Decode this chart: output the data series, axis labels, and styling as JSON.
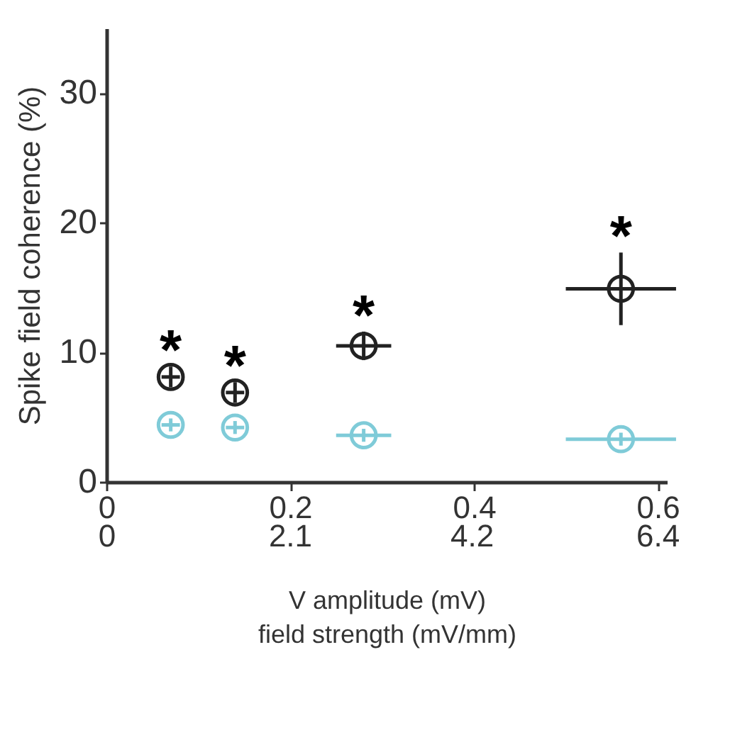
{
  "chart_data": {
    "type": "scatter",
    "xlabel": "V amplitude (mV)",
    "x2label": "field strength (mV/mm)",
    "ylabel": "Spike field coherence (%)",
    "x": [
      0.07,
      0.14,
      0.28,
      0.56
    ],
    "series": [
      {
        "color": "#222222",
        "values": [
          8.1,
          6.9,
          10.5,
          14.9
        ],
        "errors": [
          0.8,
          0.8,
          1.1,
          2.8
        ],
        "xerrors": [
          0.01,
          0.01,
          0.03,
          0.06
        ]
      },
      {
        "color": "#7fcbd8",
        "values": [
          4.4,
          4.2,
          3.6,
          3.3
        ],
        "errors": [
          0.5,
          0.5,
          0.5,
          0.5
        ],
        "xerrors": [
          0.01,
          0.01,
          0.03,
          0.06
        ]
      }
    ],
    "xlim": [
      0,
      0.61
    ],
    "xticks": [
      0,
      0.2,
      0.4,
      0.6
    ],
    "x2lim": [
      0,
      6.51
    ],
    "x2ticks": [
      0,
      {
        "value": 2.13,
        "label": "2.1"
      },
      {
        "value": 4.24,
        "label": "4.2"
      },
      6.4
    ],
    "ylim": [
      0,
      35
    ],
    "yticks": [
      0,
      10,
      20,
      30
    ],
    "marker": "circle",
    "grid": false,
    "annotations": [
      {
        "text": "*",
        "x": 0.07,
        "y": 8.1
      },
      {
        "text": "*",
        "x": 0.14,
        "y": 6.9
      },
      {
        "text": "*",
        "x": 0.28,
        "y": 10.5
      },
      {
        "text": "*",
        "x": 0.56,
        "y": 14.9
      }
    ]
  }
}
